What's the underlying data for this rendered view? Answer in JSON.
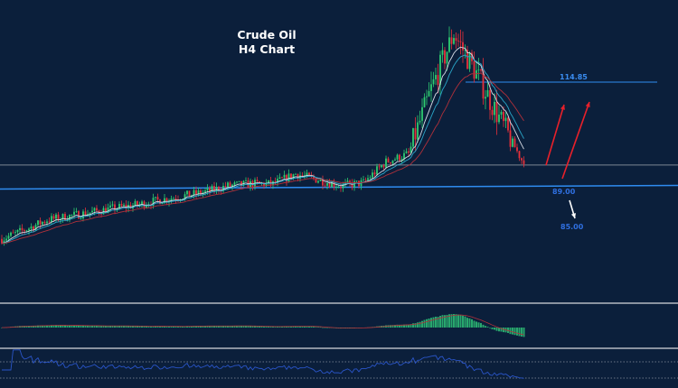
{
  "title": {
    "line1": "Crude Oil",
    "line2": "H4 Chart"
  },
  "colors": {
    "background": "#0b1f3b",
    "bull": "#2ecc71",
    "bear": "#e8303a",
    "level": "#2f8cf0",
    "level_label": "#2f6fe0",
    "arrow_up": "#e8202a",
    "arrow_down": "#ffffff",
    "ma_fast": "#d8dde6",
    "ma_mid": "#2aa6c8",
    "ma_slow": "#b0303a",
    "rsi": "#2a55c8",
    "histogram": "#2bb673"
  },
  "chart_data": {
    "type": "candlestick",
    "instrument": "Crude Oil",
    "timeframe": "H4",
    "close_path": [
      75.8,
      78,
      80.5,
      81.5,
      82.5,
      83.5,
      84.3,
      85.5,
      86.5,
      87.5,
      89,
      89.5,
      89.5,
      92,
      90.5,
      89,
      89.8,
      95,
      97,
      113,
      127,
      117,
      106,
      95.5
    ],
    "levels": [
      {
        "label": "114.85",
        "value": 114.85
      },
      {
        "label": "89.00",
        "value": 89.0
      },
      {
        "label": "85.00",
        "value": 85.0
      }
    ],
    "support_line": 94.2,
    "indicators": [
      "moving averages",
      "MACD histogram",
      "RSI"
    ],
    "grid": false
  }
}
